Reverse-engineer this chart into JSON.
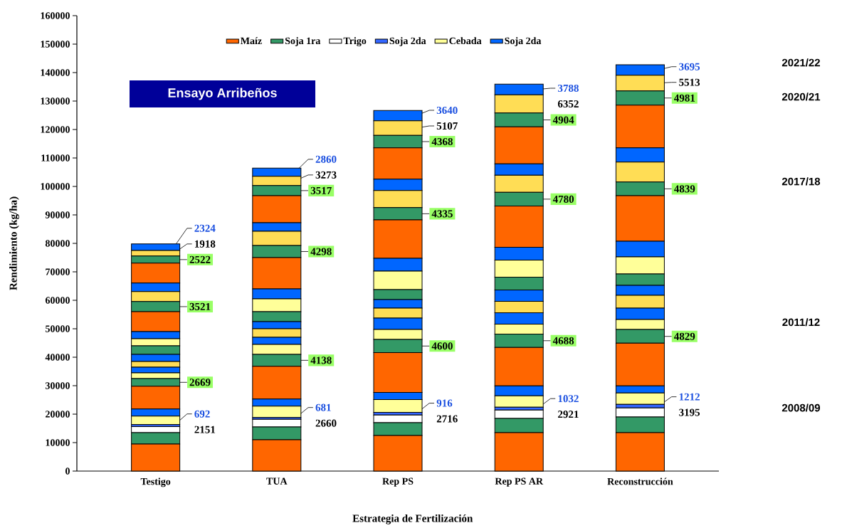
{
  "chart_data": {
    "type": "bar",
    "stacked": true,
    "title": "Ensayo Arribeños",
    "xlabel": "Estrategia de Fertilización",
    "ylabel": "Rendimiento (kg/ha)",
    "categories": [
      "Testigo",
      "TUA",
      "Rep PS",
      "Rep PS AR",
      "Reconstrucción"
    ],
    "ylim": [
      0,
      160000
    ],
    "yticks": [
      0,
      10000,
      20000,
      30000,
      40000,
      50000,
      60000,
      70000,
      80000,
      90000,
      100000,
      110000,
      120000,
      130000,
      140000,
      150000,
      160000
    ],
    "legend": "top",
    "series": [
      {
        "name": "Maíz",
        "color": "#ff6600",
        "values": [
          9500,
          11000,
          12500,
          13500,
          13500
        ]
      },
      {
        "name": "Soja 1ra",
        "color": "#339966",
        "values": [
          4000,
          4500,
          4500,
          5000,
          5500
        ]
      },
      {
        "name": "Trigo",
        "color": "#ffffff",
        "values": [
          2151,
          2660,
          2716,
          2921,
          3195
        ],
        "value_labels": [
          "2151",
          "2660",
          "2716",
          "2921",
          "3195"
        ]
      },
      {
        "name": "Soja 2da",
        "color": "#3366ff",
        "values": [
          692,
          681,
          916,
          1032,
          1212
        ],
        "value_labels": [
          "692",
          "681",
          "916",
          "1032",
          "1212"
        ]
      },
      {
        "name": "Cebada",
        "color": "#ffff99",
        "values": [
          3000,
          4000,
          4500,
          4000,
          4000
        ]
      },
      {
        "name": "Soja 2da",
        "color": "#0066ff",
        "values": [
          2500,
          2500,
          2500,
          3500,
          2500
        ]
      },
      {
        "color": "#ff6600",
        "values": [
          8000,
          11500,
          14000,
          13500,
          15000
        ]
      },
      {
        "color": "#339966",
        "values": [
          2669,
          4138,
          4600,
          4688,
          4829
        ],
        "value_labels": [
          "2669",
          "4138",
          "4600",
          "4688",
          "4829"
        ]
      },
      {
        "color": "#ffff99",
        "values": [
          2000,
          3500,
          3500,
          3500,
          3500
        ]
      },
      {
        "color": "#0066ff",
        "values": [
          2000,
          2500,
          4000,
          4000,
          4000
        ]
      },
      {
        "color": "#ffdd55",
        "values": [
          2000,
          3000,
          3500,
          4000,
          4500
        ]
      },
      {
        "color": "#0066ff",
        "values": [
          2500,
          2500,
          3000,
          4000,
          3500
        ]
      },
      {
        "color": "#339966",
        "values": [
          3000,
          3500,
          3500,
          4500,
          4000
        ]
      },
      {
        "color": "#ffff99",
        "values": [
          2500,
          4500,
          6500,
          6000,
          6000
        ]
      },
      {
        "color": "#0066ff",
        "values": [
          2500,
          3500,
          4500,
          4500,
          5500
        ]
      },
      {
        "color": "#ff6600",
        "values": [
          7000,
          11000,
          13500,
          14500,
          16000
        ]
      },
      {
        "color": "#339966",
        "values": [
          3521,
          4298,
          4335,
          4780,
          4839
        ],
        "value_labels": [
          "3521",
          "4298",
          "4335",
          "4780",
          "4839"
        ]
      },
      {
        "color": "#ffdd55",
        "values": [
          3500,
          5000,
          6000,
          6000,
          7000
        ]
      },
      {
        "color": "#0066ff",
        "values": [
          3000,
          3000,
          4000,
          4000,
          5000
        ]
      },
      {
        "color": "#ff6600",
        "values": [
          7000,
          9500,
          11000,
          13000,
          15000
        ]
      },
      {
        "color": "#339966",
        "values": [
          2522,
          3517,
          4368,
          4904,
          4981
        ],
        "value_labels": [
          "2522",
          "3517",
          "4368",
          "4904",
          "4981"
        ]
      },
      {
        "color": "#ffdd55",
        "values": [
          1918,
          3273,
          5107,
          6352,
          5513
        ],
        "value_labels": [
          "1918",
          "3273",
          "5107",
          "6352",
          "5513"
        ]
      },
      {
        "color": "#0066ff",
        "values": [
          2324,
          2860,
          3640,
          3788,
          3695
        ],
        "value_labels": [
          "2324",
          "2860",
          "3640",
          "3788",
          "3695"
        ]
      }
    ],
    "annotations": [
      "2021/22",
      "2020/21",
      "2017/18",
      "2011/12",
      "2008/09"
    ]
  }
}
